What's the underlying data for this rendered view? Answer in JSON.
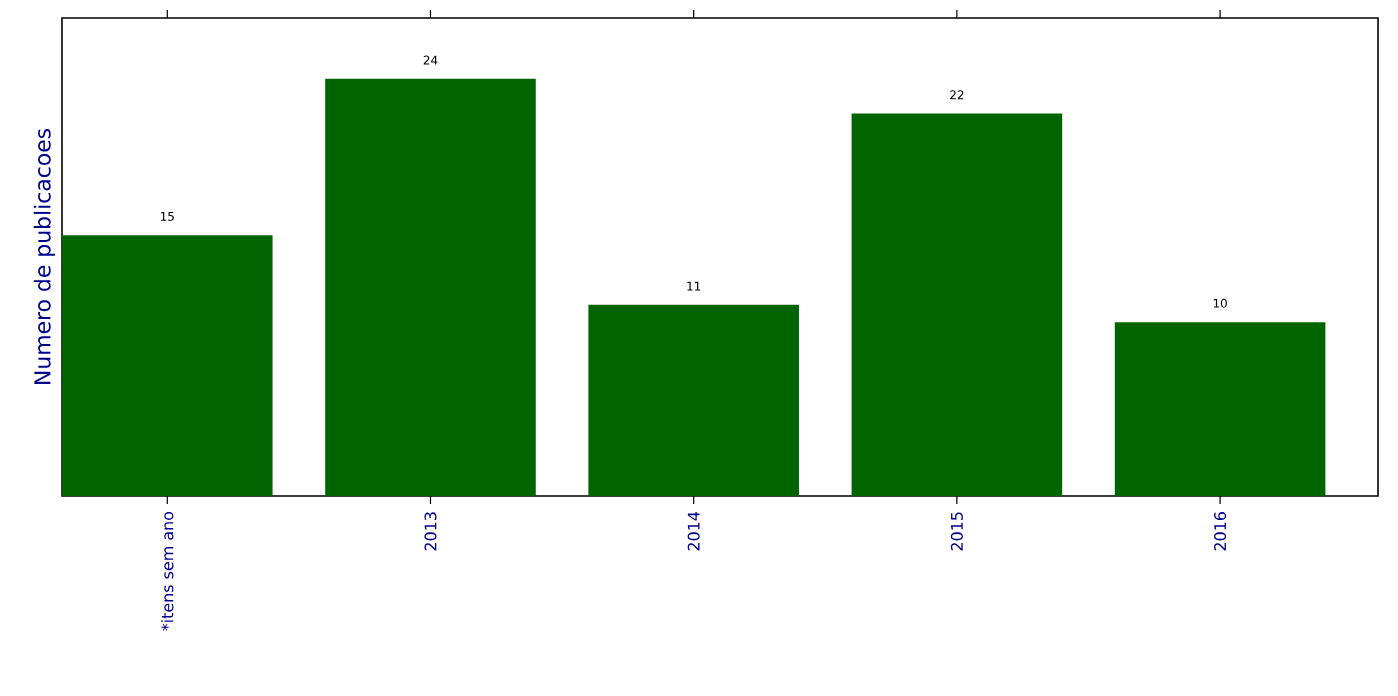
{
  "chart_data": {
    "type": "bar",
    "ylabel": "Numero de publicacoes",
    "categories": [
      "*itens sem ano",
      "2013",
      "2014",
      "2015",
      "2016"
    ],
    "values": [
      15,
      24,
      11,
      22,
      10
    ],
    "color": "#006400",
    "ylim": [
      0,
      27.5
    ],
    "data_labels": true,
    "tick_labels": "x",
    "grid": false
  }
}
